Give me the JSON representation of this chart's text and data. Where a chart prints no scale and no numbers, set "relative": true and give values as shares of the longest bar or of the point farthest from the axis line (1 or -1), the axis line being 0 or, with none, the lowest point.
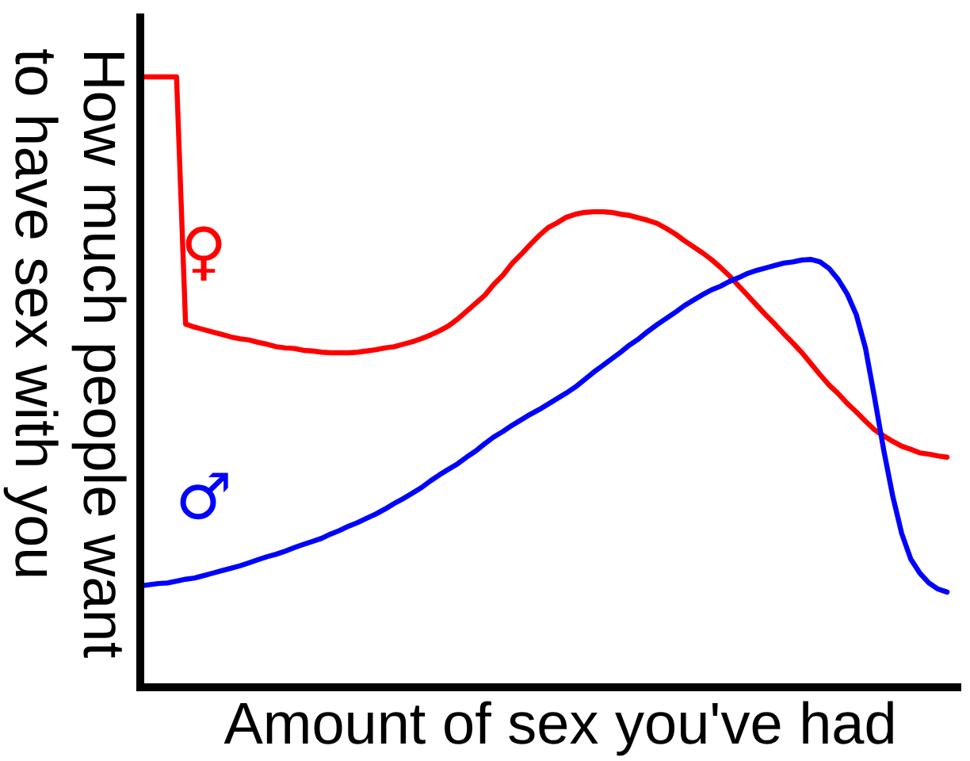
{
  "chart_data": {
    "type": "line",
    "relative": true,
    "xlabel": "Amount of sex you've had",
    "ylabel": "How much people want to have sex with you",
    "categories": [
      null,
      null,
      null,
      null,
      null,
      null,
      null,
      null,
      null,
      null,
      null,
      null,
      null,
      null,
      null,
      null,
      null,
      null,
      null,
      null,
      null,
      null,
      null,
      null,
      null,
      null,
      null,
      null,
      null,
      null,
      null,
      null,
      null,
      null,
      null,
      null,
      null,
      null,
      null,
      null,
      null,
      null,
      null,
      null,
      null,
      null,
      null,
      null,
      null,
      null,
      null,
      null,
      null,
      null,
      null,
      null,
      null,
      null,
      null,
      null,
      null,
      null,
      null,
      null,
      null,
      null,
      null,
      null,
      null,
      null,
      null,
      null,
      null,
      null,
      null,
      null,
      null,
      null,
      null,
      null,
      null,
      null,
      null,
      null,
      null,
      null,
      null,
      null,
      null,
      null
    ],
    "series": [
      {
        "name": "♀",
        "color": "#ff0000",
        "values": [
          1.0,
          1.0,
          1.0,
          1.0,
          1.0,
          0.595,
          0.59,
          0.586,
          0.582,
          0.578,
          0.574,
          0.571,
          0.569,
          0.565,
          0.562,
          0.558,
          0.556,
          0.555,
          0.552,
          0.551,
          0.549,
          0.548,
          0.548,
          0.548,
          0.549,
          0.551,
          0.553,
          0.556,
          0.558,
          0.562,
          0.566,
          0.571,
          0.577,
          0.584,
          0.592,
          0.603,
          0.616,
          0.629,
          0.642,
          0.66,
          0.675,
          0.694,
          0.709,
          0.725,
          0.74,
          0.753,
          0.761,
          0.77,
          0.775,
          0.778,
          0.779,
          0.779,
          0.778,
          0.775,
          0.773,
          0.769,
          0.765,
          0.76,
          0.752,
          0.743,
          0.732,
          0.722,
          0.712,
          0.701,
          0.688,
          0.674,
          0.658,
          0.642,
          0.626,
          0.61,
          0.595,
          0.579,
          0.564,
          0.548,
          0.53,
          0.512,
          0.495,
          0.481,
          0.465,
          0.451,
          0.436,
          0.422,
          0.412,
          0.403,
          0.395,
          0.39,
          0.384,
          0.382,
          0.379,
          0.377
        ]
      },
      {
        "name": "♂",
        "color": "#0000ff",
        "values": [
          0.166,
          0.168,
          0.17,
          0.171,
          0.174,
          0.177,
          0.179,
          0.183,
          0.187,
          0.191,
          0.195,
          0.199,
          0.204,
          0.209,
          0.214,
          0.218,
          0.223,
          0.229,
          0.234,
          0.239,
          0.244,
          0.251,
          0.257,
          0.264,
          0.27,
          0.277,
          0.284,
          0.292,
          0.301,
          0.309,
          0.318,
          0.327,
          0.338,
          0.348,
          0.357,
          0.366,
          0.377,
          0.387,
          0.399,
          0.41,
          0.419,
          0.429,
          0.438,
          0.447,
          0.455,
          0.464,
          0.473,
          0.482,
          0.492,
          0.504,
          0.516,
          0.527,
          0.538,
          0.549,
          0.561,
          0.571,
          0.583,
          0.594,
          0.604,
          0.614,
          0.625,
          0.634,
          0.643,
          0.651,
          0.657,
          0.665,
          0.671,
          0.678,
          0.683,
          0.687,
          0.691,
          0.695,
          0.697,
          0.7,
          0.701,
          0.697,
          0.686,
          0.668,
          0.644,
          0.61,
          0.556,
          0.475,
          0.39,
          0.314,
          0.252,
          0.21,
          0.187,
          0.171,
          0.161,
          0.156
        ]
      }
    ]
  }
}
